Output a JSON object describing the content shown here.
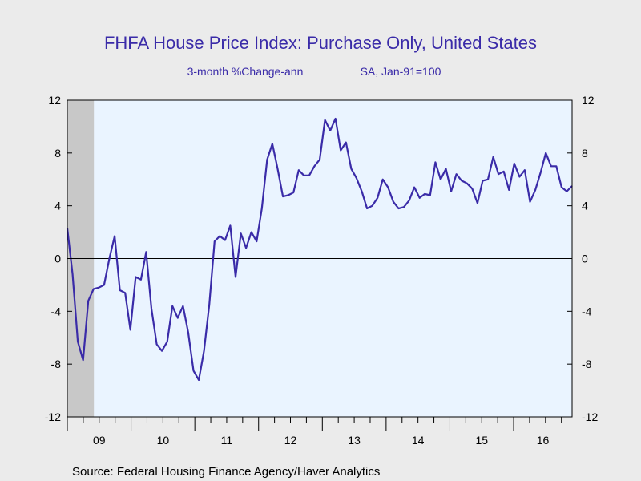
{
  "chart_data": {
    "type": "line",
    "title": "FHFA House Price Index: Purchase Only, United States",
    "subtitle_left": "3-month %Change-ann",
    "subtitle_right": "SA, Jan-91=100",
    "source": "Source:  Federal Housing Finance Agency/Haver Analytics",
    "ylim": [
      -12,
      12
    ],
    "yticks": [
      -12,
      -8,
      -4,
      0,
      4,
      8,
      12
    ],
    "xlim": [
      2009.0,
      2016.917
    ],
    "xtick_labels": [
      {
        "label": "09",
        "year": 2009
      },
      {
        "label": "10",
        "year": 2010
      },
      {
        "label": "11",
        "year": 2011
      },
      {
        "label": "12",
        "year": 2012
      },
      {
        "label": "13",
        "year": 2013
      },
      {
        "label": "14",
        "year": 2014
      },
      {
        "label": "15",
        "year": 2015
      },
      {
        "label": "16",
        "year": 2016
      }
    ],
    "recession_shading": {
      "start": 2009.0,
      "end": 2009.417,
      "color": "#c8c8c8"
    },
    "plot_background": "#eaf4ff",
    "line_color": "#3a2ba8",
    "zero_line": true,
    "series": [
      {
        "values": [
          2.3,
          -1.2,
          -6.3,
          -7.7,
          -3.2,
          -2.3,
          -2.2,
          -2.0,
          0.0,
          1.7,
          -2.4,
          -2.6,
          -5.4,
          -1.4,
          -1.6,
          0.5,
          -3.8,
          -6.5,
          -7.0,
          -6.3,
          -3.6,
          -4.5,
          -3.6,
          -5.6,
          -8.5,
          -9.2,
          -7.0,
          -3.5,
          1.3,
          1.7,
          1.4,
          2.5,
          -1.4,
          1.9,
          0.8,
          2.0,
          1.3,
          3.8,
          7.5,
          8.7,
          6.8,
          4.7,
          4.8,
          5.0,
          6.7,
          6.3,
          6.3,
          7.0,
          7.5,
          10.5,
          9.7,
          10.6,
          8.2,
          8.8,
          6.8,
          6.1,
          5.1,
          3.8,
          4.0,
          4.6,
          6.0,
          5.4,
          4.3,
          3.8,
          3.9,
          4.4,
          5.4,
          4.6,
          4.9,
          4.8,
          7.3,
          6.0,
          6.8,
          5.1,
          6.4,
          5.9,
          5.7,
          5.3,
          4.2,
          5.9,
          6.0,
          7.7,
          6.4,
          6.6,
          5.2,
          7.2,
          6.2,
          6.7,
          4.3,
          5.2,
          6.5,
          8.0,
          7.0,
          7.0,
          5.4,
          5.1,
          5.5
        ]
      }
    ]
  }
}
